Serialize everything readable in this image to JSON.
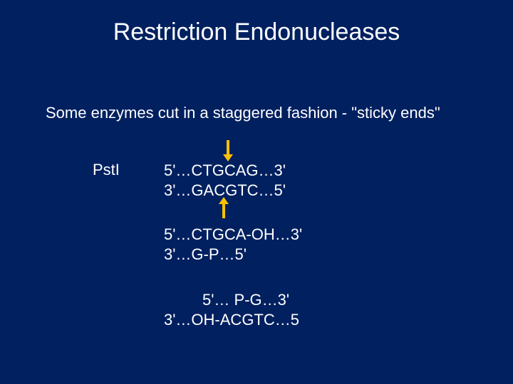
{
  "background_color": "#002060",
  "text_color": "#ffffff",
  "arrow_color": "#ffc000",
  "title": "Restriction Endonucleases",
  "subtitle": "Some enzymes cut in a staggered fashion - \"sticky ends\"",
  "enzyme": "PstI",
  "pair1": {
    "top": "5'…CTGCAG…3'",
    "bottom": "3'…GACGTC…5'"
  },
  "pair2": {
    "top": "5'…CTGCA-OH…3'",
    "bottom": "3'…G-P…5'"
  },
  "pair3": {
    "top": "5'… P-G…3'",
    "bottom": "3'…OH-ACGTC…5"
  },
  "fontsize_title": 34,
  "fontsize_body": 22
}
